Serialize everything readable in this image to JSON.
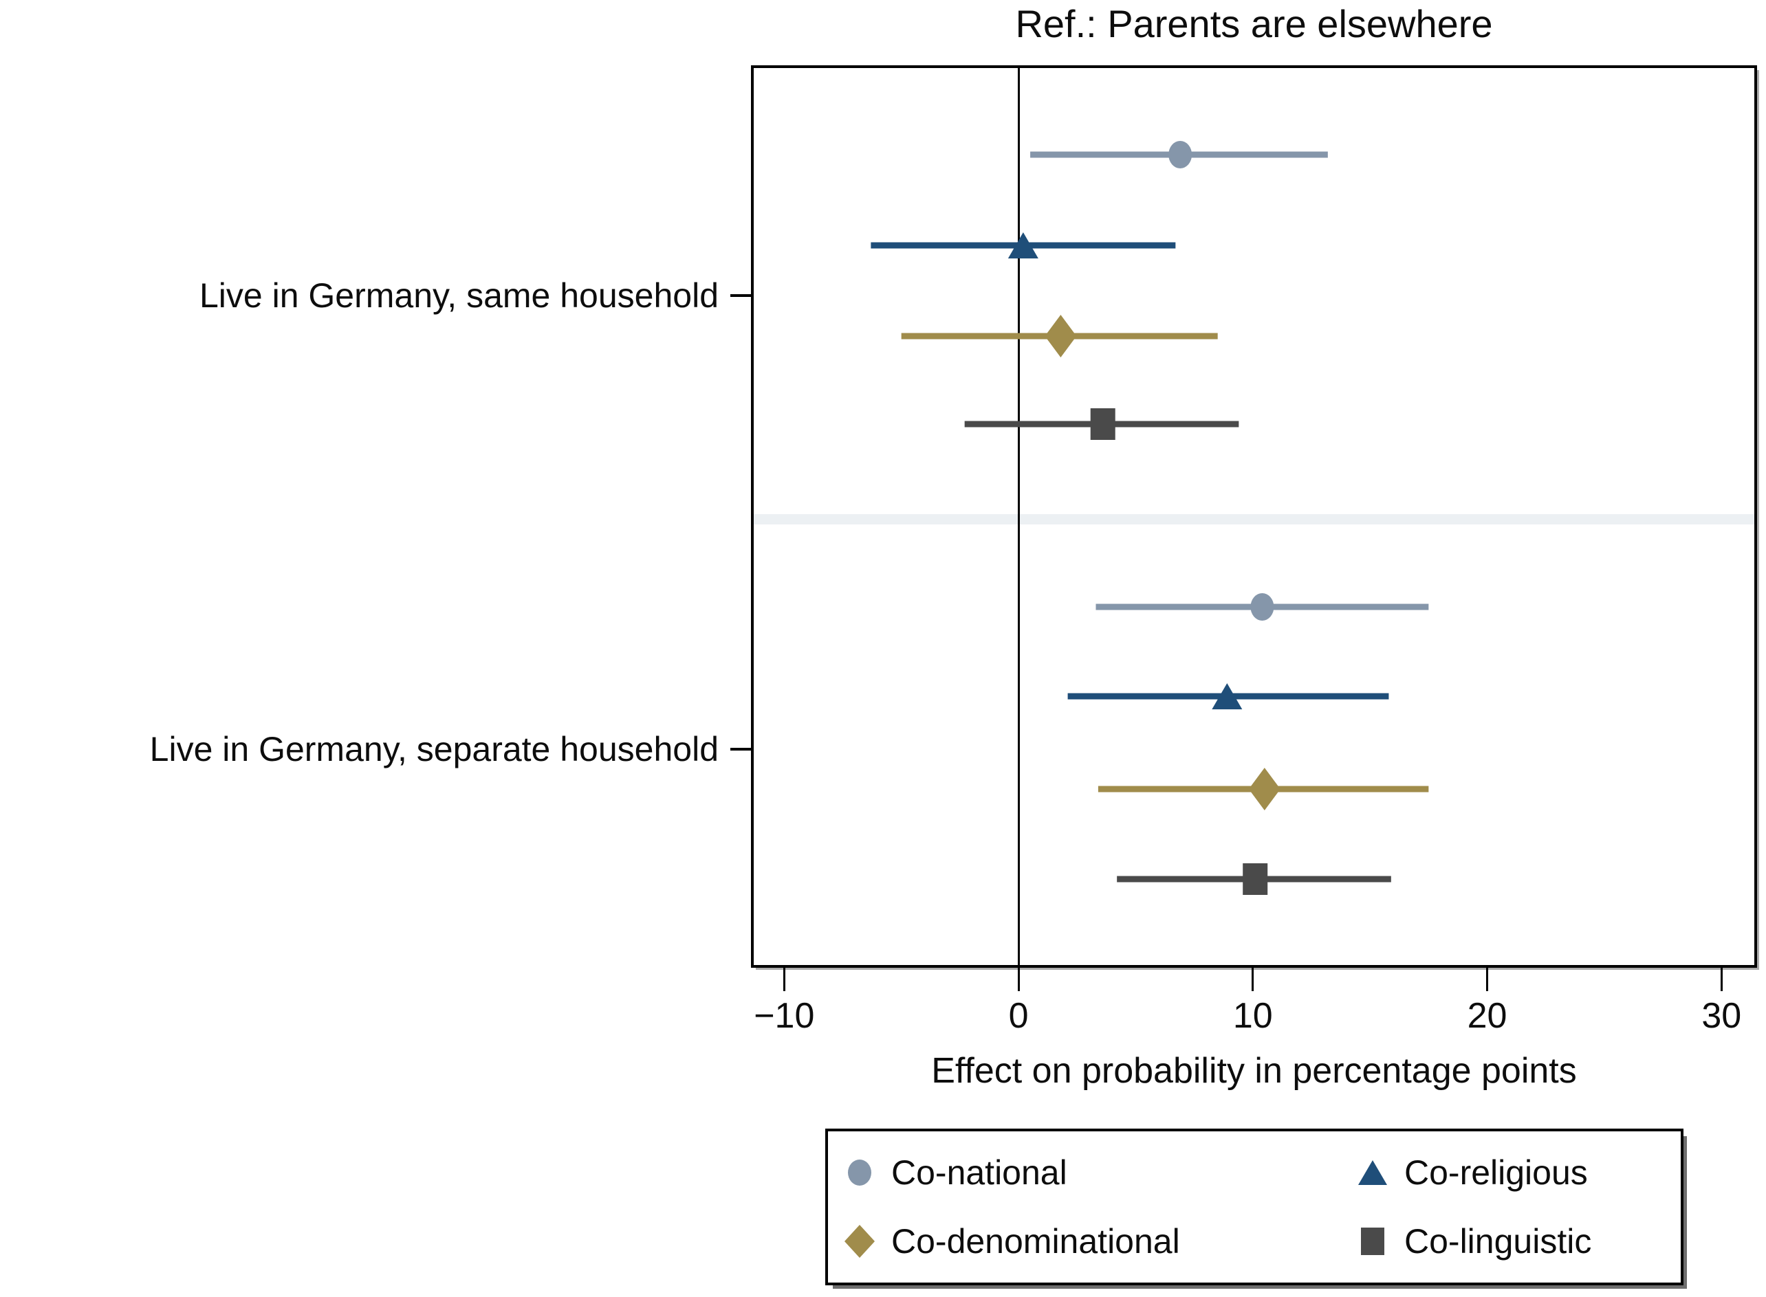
{
  "chart": {
    "title": "Ref.: Parents are elsewhere",
    "x_axis_title": "Effect on probability in percentage points"
  },
  "chart_data": {
    "type": "scatter",
    "subtype": "coefficient-forest-plot-with-95ci",
    "title": "Ref.: Parents are elsewhere",
    "xlabel": "Effect on probability in percentage points",
    "ylabel": "",
    "xlim": [
      -11.3,
      31.4
    ],
    "grid": false,
    "legend_position": "bottom",
    "reference_line_x": 0,
    "x_ticks": [
      {
        "value": -10,
        "label": "−10"
      },
      {
        "value": 0,
        "label": "0"
      },
      {
        "value": 10,
        "label": "10"
      },
      {
        "value": 20,
        "label": "20"
      },
      {
        "value": 30,
        "label": "30"
      }
    ],
    "series": [
      {
        "name": "Co-national",
        "marker": "circle",
        "color": "#8596AA"
      },
      {
        "name": "Co-religious",
        "marker": "triangle",
        "color": "#1F4E79"
      },
      {
        "name": "Co-denominational",
        "marker": "diamond",
        "color": "#A08C4B"
      },
      {
        "name": "Co-linguistic",
        "marker": "square",
        "color": "#4A4A4A"
      }
    ],
    "groups": [
      {
        "label": "Live in Germany, same household",
        "estimates": [
          {
            "series": "Co-national",
            "value": 6.9,
            "ci_low": 0.5,
            "ci_high": 13.2
          },
          {
            "series": "Co-religious",
            "value": 0.2,
            "ci_low": -6.3,
            "ci_high": 6.7
          },
          {
            "series": "Co-denominational",
            "value": 1.8,
            "ci_low": -5.0,
            "ci_high": 8.5
          },
          {
            "series": "Co-linguistic",
            "value": 3.6,
            "ci_low": -2.3,
            "ci_high": 9.4
          }
        ]
      },
      {
        "label": "Live in Germany, separate household",
        "estimates": [
          {
            "series": "Co-national",
            "value": 10.4,
            "ci_low": 3.3,
            "ci_high": 17.5
          },
          {
            "series": "Co-religious",
            "value": 8.9,
            "ci_low": 2.1,
            "ci_high": 15.8
          },
          {
            "series": "Co-denominational",
            "value": 10.5,
            "ci_low": 3.4,
            "ci_high": 17.5
          },
          {
            "series": "Co-linguistic",
            "value": 10.1,
            "ci_low": 4.2,
            "ci_high": 15.9
          }
        ]
      }
    ]
  }
}
